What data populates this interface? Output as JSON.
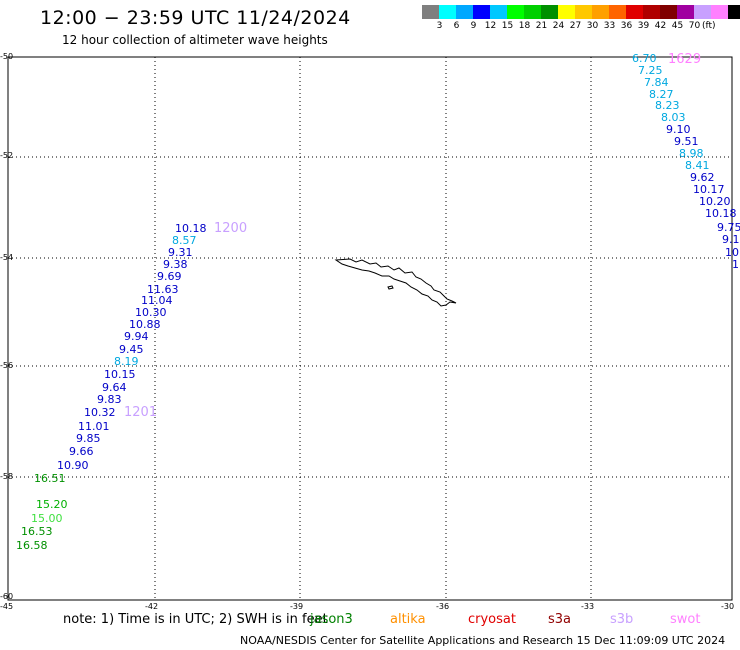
{
  "header": {
    "title": "12:00 − 23:59 UTC 11/24/2024",
    "subtitle": "12 hour collection of altimeter wave heights"
  },
  "colorbar": {
    "unit": "(ft)",
    "colors": [
      "#7f7f7f",
      "#00ffff",
      "#00a8ff",
      "#0000ff",
      "#00c8ff",
      "#00ff00",
      "#00d000",
      "#009000",
      "#ffff00",
      "#ffc800",
      "#ffa000",
      "#ff6400",
      "#e00000",
      "#b00000",
      "#800000",
      "#a000a0",
      "#c8a0ff",
      "#ff80ff",
      "#000000"
    ],
    "ticks": [
      "3",
      "6",
      "9",
      "12",
      "15",
      "18",
      "21",
      "24",
      "27",
      "30",
      "33",
      "36",
      "39",
      "42",
      "45",
      "70"
    ]
  },
  "axes": {
    "y_labels": [
      "-50",
      "-52",
      "-54",
      "-56",
      "-58",
      "-60"
    ],
    "x_labels": [
      "-45",
      "-42",
      "-39",
      "-36",
      "-33",
      "-30"
    ]
  },
  "tracks": [
    {
      "name": "west",
      "time_marks": [
        "1200",
        "1201"
      ],
      "points": [
        {
          "v": "10.18",
          "c": "#0000c8"
        },
        {
          "v": "8.57",
          "c": "#00a8e0"
        },
        {
          "v": "9.31",
          "c": "#0000c8"
        },
        {
          "v": "9.38",
          "c": "#0000c8"
        },
        {
          "v": "9.69",
          "c": "#0000c8"
        },
        {
          "v": "11.63",
          "c": "#0000c8"
        },
        {
          "v": "11.04",
          "c": "#0000c8"
        },
        {
          "v": "10.30",
          "c": "#0000c8"
        },
        {
          "v": "10.88",
          "c": "#0000c8"
        },
        {
          "v": "9.94",
          "c": "#0000c8"
        },
        {
          "v": "9.45",
          "c": "#0000c8"
        },
        {
          "v": "8.19",
          "c": "#00a8e0"
        },
        {
          "v": "10.15",
          "c": "#0000c8"
        },
        {
          "v": "9.64",
          "c": "#0000c8"
        },
        {
          "v": "9.83",
          "c": "#0000c8"
        },
        {
          "v": "10.32",
          "c": "#0000c8"
        },
        {
          "v": "11.01",
          "c": "#0000c8"
        },
        {
          "v": "9.85",
          "c": "#0000c8"
        },
        {
          "v": "9.66",
          "c": "#0000c8"
        },
        {
          "v": "10.90",
          "c": "#0000c8"
        },
        {
          "v": "16.51",
          "c": "#009000"
        },
        {
          "v": "15.20",
          "c": "#00b000"
        },
        {
          "v": "15.00",
          "c": "#40e040"
        },
        {
          "v": "16.53",
          "c": "#009000"
        },
        {
          "v": "16.58",
          "c": "#009000"
        }
      ]
    },
    {
      "name": "east",
      "time_marks": [
        "1629"
      ],
      "points": [
        {
          "v": "6.70",
          "c": "#00a8e0"
        },
        {
          "v": "7.25",
          "c": "#00a8e0"
        },
        {
          "v": "7.84",
          "c": "#00a8e0"
        },
        {
          "v": "8.27",
          "c": "#00a8e0"
        },
        {
          "v": "8.23",
          "c": "#00a8e0"
        },
        {
          "v": "8.03",
          "c": "#00a8e0"
        },
        {
          "v": "9.10",
          "c": "#0000c8"
        },
        {
          "v": "9.51",
          "c": "#0000c8"
        },
        {
          "v": "8.98",
          "c": "#00a8e0"
        },
        {
          "v": "8.41",
          "c": "#00a8e0"
        },
        {
          "v": "9.62",
          "c": "#0000c8"
        },
        {
          "v": "10.17",
          "c": "#0000c8"
        },
        {
          "v": "10.20",
          "c": "#0000c8"
        },
        {
          "v": "10.18",
          "c": "#0000c8"
        },
        {
          "v": "9.75",
          "c": "#0000c8"
        },
        {
          "v": "9.1",
          "c": "#0000c8"
        },
        {
          "v": "10.",
          "c": "#0000c8"
        },
        {
          "v": "1",
          "c": "#0000c8"
        }
      ]
    }
  ],
  "footer": {
    "note": "note:  1) Time is in UTC; 2) SWH is in feet",
    "satellites": [
      {
        "name": "jason3",
        "color": "#008000"
      },
      {
        "name": "altika",
        "color": "#ff9000"
      },
      {
        "name": "cryosat",
        "color": "#e00000"
      },
      {
        "name": "s3a",
        "color": "#900000"
      },
      {
        "name": "s3b",
        "color": "#c8a0ff"
      },
      {
        "name": "swot",
        "color": "#ff80ff"
      }
    ],
    "credit": "NOAA/NESDIS Center for Satellite Applications and Research     15 Dec 11:09:09 UTC 2024"
  }
}
